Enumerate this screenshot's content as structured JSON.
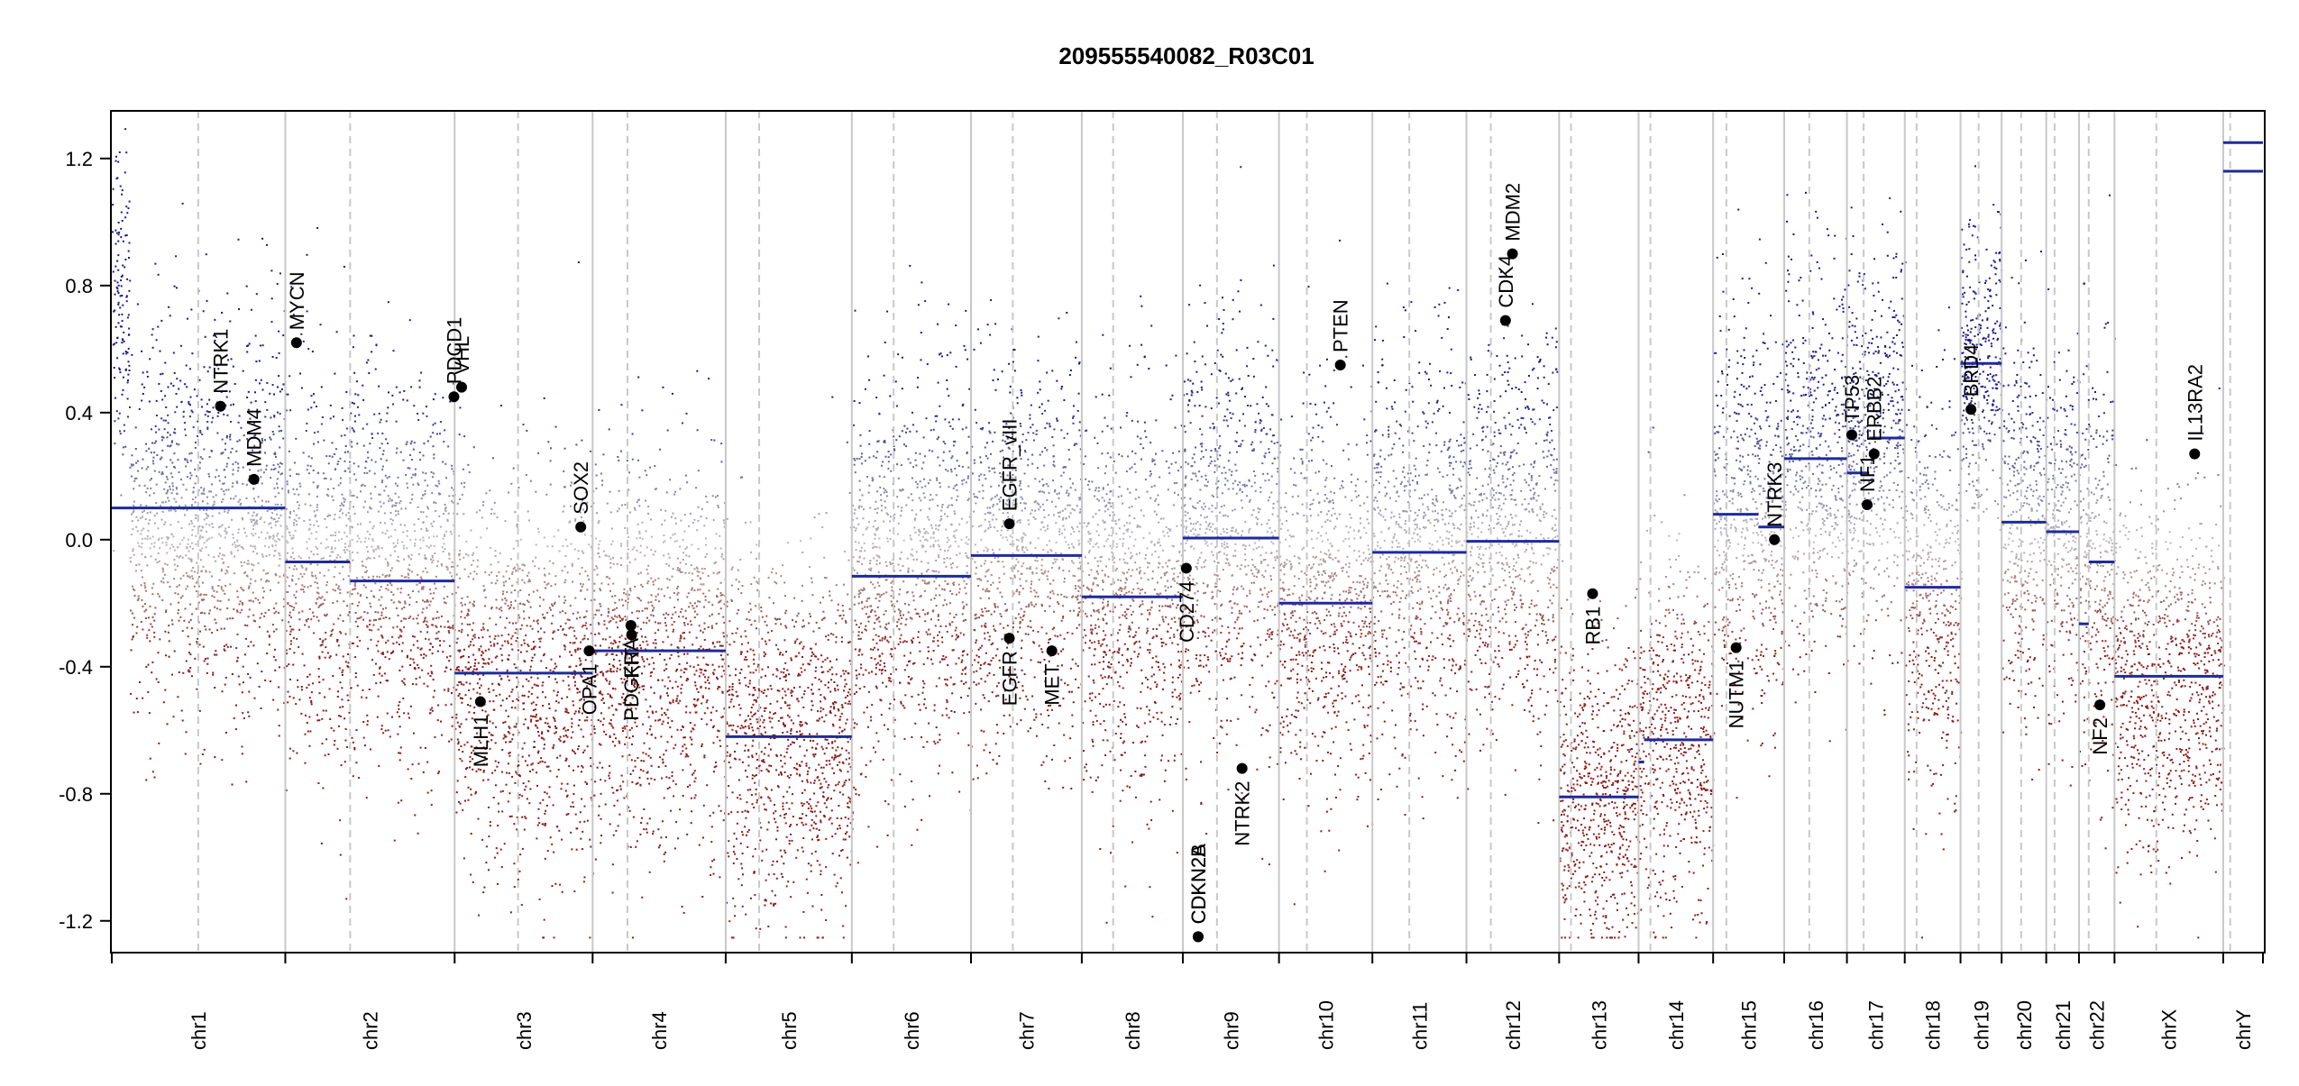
{
  "page": {
    "title": "209555540082_R03C01"
  },
  "chart_data": {
    "type": "scatter",
    "title": "209555540082_R03C01",
    "xlabel": "",
    "ylabel": "",
    "ylim": [
      -1.3,
      1.35
    ],
    "y_ticks": [
      1.2,
      0.8,
      0.4,
      0.0,
      -0.4,
      -0.8,
      -1.2
    ],
    "y_tick_labels": [
      "1.2",
      "0.8",
      "0.4",
      "0.0",
      "-0.4",
      "-0.8",
      "-1.2"
    ],
    "grid": false,
    "legend": "none",
    "colors": {
      "gain": "#1a1a8c",
      "loss": "#8b1a1a",
      "neutral": "#bbbbbb",
      "segment": "#1f2a9a",
      "marker": "#000000",
      "boundary": "#c8c8c8",
      "centromere": "#c8c8c8"
    },
    "chromosomes": [
      {
        "name": "chr1",
        "length": 249,
        "centromere": 124
      },
      {
        "name": "chr2",
        "length": 243,
        "centromere": 93
      },
      {
        "name": "chr3",
        "length": 198,
        "centromere": 91
      },
      {
        "name": "chr4",
        "length": 191,
        "centromere": 50
      },
      {
        "name": "chr5",
        "length": 181,
        "centromere": 48
      },
      {
        "name": "chr6",
        "length": 171,
        "centromere": 60
      },
      {
        "name": "chr7",
        "length": 159,
        "centromere": 60
      },
      {
        "name": "chr8",
        "length": 145,
        "centromere": 45
      },
      {
        "name": "chr9",
        "length": 138,
        "centromere": 49
      },
      {
        "name": "chr10",
        "length": 134,
        "centromere": 40
      },
      {
        "name": "chr11",
        "length": 135,
        "centromere": 53
      },
      {
        "name": "chr12",
        "length": 133,
        "centromere": 35
      },
      {
        "name": "chr13",
        "length": 114,
        "centromere": 17
      },
      {
        "name": "chr14",
        "length": 107,
        "centromere": 17
      },
      {
        "name": "chr15",
        "length": 102,
        "centromere": 19
      },
      {
        "name": "chr16",
        "length": 90,
        "centromere": 36
      },
      {
        "name": "chr17",
        "length": 83,
        "centromere": 24
      },
      {
        "name": "chr18",
        "length": 80,
        "centromere": 17
      },
      {
        "name": "chr19",
        "length": 59,
        "centromere": 26
      },
      {
        "name": "chr20",
        "length": 64,
        "centromere": 28
      },
      {
        "name": "chr21",
        "length": 47,
        "centromere": 12
      },
      {
        "name": "chr22",
        "length": 51,
        "centromere": 14
      },
      {
        "name": "chrX",
        "length": 156,
        "centromere": 60
      },
      {
        "name": "chrY",
        "length": 57,
        "centromere": 10
      }
    ],
    "segments": [
      {
        "chr": "chr1",
        "start": 0,
        "end": 249,
        "value": 0.1
      },
      {
        "chr": "chr2",
        "start": 0,
        "end": 93,
        "value": -0.07
      },
      {
        "chr": "chr2",
        "start": 93,
        "end": 243,
        "value": -0.13
      },
      {
        "chr": "chr3",
        "start": 0,
        "end": 198,
        "value": -0.42
      },
      {
        "chr": "chr4",
        "start": 0,
        "end": 191,
        "value": -0.35
      },
      {
        "chr": "chr5",
        "start": 0,
        "end": 181,
        "value": -0.62
      },
      {
        "chr": "chr6",
        "start": 0,
        "end": 171,
        "value": -0.115
      },
      {
        "chr": "chr7",
        "start": 0,
        "end": 159,
        "value": -0.05
      },
      {
        "chr": "chr8",
        "start": 0,
        "end": 145,
        "value": -0.18
      },
      {
        "chr": "chr9",
        "start": 0,
        "end": 138,
        "value": 0.005
      },
      {
        "chr": "chr10",
        "start": 0,
        "end": 134,
        "value": -0.2
      },
      {
        "chr": "chr11",
        "start": 0,
        "end": 135,
        "value": -0.04
      },
      {
        "chr": "chr12",
        "start": 0,
        "end": 133,
        "value": -0.005
      },
      {
        "chr": "chr13",
        "start": 0,
        "end": 114,
        "value": -0.81
      },
      {
        "chr": "chr14",
        "start": 0,
        "end": 8,
        "value": -0.7
      },
      {
        "chr": "chr14",
        "start": 8,
        "end": 107,
        "value": -0.63
      },
      {
        "chr": "chr15",
        "start": 0,
        "end": 65,
        "value": 0.08
      },
      {
        "chr": "chr15",
        "start": 65,
        "end": 102,
        "value": 0.04
      },
      {
        "chr": "chr16",
        "start": 0,
        "end": 90,
        "value": 0.255
      },
      {
        "chr": "chr17",
        "start": 0,
        "end": 32,
        "value": 0.21
      },
      {
        "chr": "chr17",
        "start": 32,
        "end": 83,
        "value": 0.32
      },
      {
        "chr": "chr18",
        "start": 0,
        "end": 80,
        "value": -0.15
      },
      {
        "chr": "chr19",
        "start": 0,
        "end": 59,
        "value": 0.555
      },
      {
        "chr": "chr20",
        "start": 0,
        "end": 64,
        "value": 0.055
      },
      {
        "chr": "chr21",
        "start": 0,
        "end": 47,
        "value": 0.025
      },
      {
        "chr": "chr22",
        "start": 0,
        "end": 14,
        "value": -0.265
      },
      {
        "chr": "chr22",
        "start": 14,
        "end": 51,
        "value": -0.07
      },
      {
        "chr": "chrX",
        "start": 0,
        "end": 156,
        "value": -0.43
      },
      {
        "chr": "chrY",
        "start": 0,
        "end": 57,
        "value": 1.16
      },
      {
        "chr": "chrY",
        "start": 0,
        "end": 57,
        "value": 1.25
      }
    ],
    "genes": [
      {
        "name": "NTRK1",
        "chr": "chr1",
        "pos": 156,
        "value": 0.42,
        "side": "above"
      },
      {
        "name": "MDM4",
        "chr": "chr1",
        "pos": 204,
        "value": 0.19,
        "side": "above"
      },
      {
        "name": "MYCN",
        "chr": "chr2",
        "pos": 16,
        "value": 0.62,
        "side": "above"
      },
      {
        "name": "PDCD1",
        "chr": "chr2",
        "pos": 242,
        "value": 0.45,
        "side": "above"
      },
      {
        "name": "VHL",
        "chr": "chr3",
        "pos": 10,
        "value": 0.48,
        "side": "above"
      },
      {
        "name": "MLH1",
        "chr": "chr3",
        "pos": 37,
        "value": -0.51,
        "side": "below"
      },
      {
        "name": "SOX2",
        "chr": "chr3",
        "pos": 181,
        "value": 0.04,
        "side": "above"
      },
      {
        "name": "OPA1",
        "chr": "chr3",
        "pos": 193,
        "value": -0.35,
        "side": "below"
      },
      {
        "name": "PDGFRA",
        "chr": "chr4",
        "pos": 55,
        "value": -0.27,
        "side": "below"
      },
      {
        "name": "KIT",
        "chr": "chr4",
        "pos": 56,
        "value": -0.3,
        "side": "below"
      },
      {
        "name": "EGFR_vIII",
        "chr": "chr7",
        "pos": 55,
        "value": 0.05,
        "side": "above"
      },
      {
        "name": "EGFR",
        "chr": "chr7",
        "pos": 55,
        "value": -0.31,
        "side": "below"
      },
      {
        "name": "MET",
        "chr": "chr7",
        "pos": 116,
        "value": -0.35,
        "side": "below"
      },
      {
        "name": "CD274",
        "chr": "chr9",
        "pos": 5,
        "value": -0.09,
        "side": "below"
      },
      {
        "name": "CDKN2A",
        "chr": "chr9",
        "pos": 21.9,
        "value": -1.25,
        "side": "above"
      },
      {
        "name": "CDKN2B",
        "chr": "chr9",
        "pos": 22.0,
        "value": -1.25,
        "side": "above"
      },
      {
        "name": "NTRK2",
        "chr": "chr9",
        "pos": 85,
        "value": -0.72,
        "side": "below"
      },
      {
        "name": "PTEN",
        "chr": "chr10",
        "pos": 88,
        "value": 0.55,
        "side": "above"
      },
      {
        "name": "CDK4",
        "chr": "chr12",
        "pos": 56,
        "value": 0.69,
        "side": "above"
      },
      {
        "name": "MDM2",
        "chr": "chr12",
        "pos": 66,
        "value": 0.9,
        "side": "above"
      },
      {
        "name": "RB1",
        "chr": "chr13",
        "pos": 48,
        "value": -0.17,
        "side": "below"
      },
      {
        "name": "NUTM1",
        "chr": "chr15",
        "pos": 33,
        "value": -0.34,
        "side": "below"
      },
      {
        "name": "NTRK3",
        "chr": "chr15",
        "pos": 88,
        "value": 0.0,
        "side": "above"
      },
      {
        "name": "TP53",
        "chr": "chr17",
        "pos": 7,
        "value": 0.33,
        "side": "above"
      },
      {
        "name": "NF1",
        "chr": "chr17",
        "pos": 29,
        "value": 0.11,
        "side": "above"
      },
      {
        "name": "ERBB2",
        "chr": "chr17",
        "pos": 39,
        "value": 0.27,
        "side": "above"
      },
      {
        "name": "BRD4",
        "chr": "chr19",
        "pos": 15,
        "value": 0.41,
        "side": "above"
      },
      {
        "name": "NF2",
        "chr": "chr22",
        "pos": 30,
        "value": -0.52,
        "side": "below"
      },
      {
        "name": "IL13RA2",
        "chr": "chrX",
        "pos": 115,
        "value": 0.27,
        "side": "above"
      }
    ],
    "probe_density": {
      "chr1": {
        "center": 0.05,
        "spread": 0.55,
        "hot_start": 0,
        "hot_end": 25,
        "hot_center": 0.75
      },
      "chr2": {
        "center": -0.1,
        "spread": 0.55
      },
      "chr3": {
        "center": -0.42,
        "spread": 0.55
      },
      "chr4": {
        "center": -0.35,
        "spread": 0.55
      },
      "chr5": {
        "center": -0.6,
        "spread": 0.5
      },
      "chr6": {
        "center": -0.1,
        "spread": 0.55
      },
      "chr7": {
        "center": -0.05,
        "spread": 0.55
      },
      "chr8": {
        "center": -0.18,
        "spread": 0.55
      },
      "chr9": {
        "center": 0.0,
        "spread": 0.6
      },
      "chr10": {
        "center": -0.2,
        "spread": 0.55
      },
      "chr11": {
        "center": -0.04,
        "spread": 0.55
      },
      "chr12": {
        "center": 0.0,
        "spread": 0.55
      },
      "chr13": {
        "center": -0.8,
        "spread": 0.45
      },
      "chr14": {
        "center": -0.63,
        "spread": 0.5
      },
      "chr15": {
        "center": 0.08,
        "spread": 0.55
      },
      "chr16": {
        "center": 0.25,
        "spread": 0.55
      },
      "chr17": {
        "center": 0.3,
        "spread": 0.55
      },
      "chr18": {
        "center": -0.15,
        "spread": 0.55
      },
      "chr19": {
        "center": 0.55,
        "spread": 0.4
      },
      "chr20": {
        "center": 0.05,
        "spread": 0.55
      },
      "chr21": {
        "center": 0.03,
        "spread": 0.55
      },
      "chr22": {
        "center": -0.07,
        "spread": 0.55
      },
      "chrX": {
        "center": -0.43,
        "spread": 0.5
      },
      "chrY": {
        "center": 1.2,
        "spread": 0.0
      }
    }
  }
}
